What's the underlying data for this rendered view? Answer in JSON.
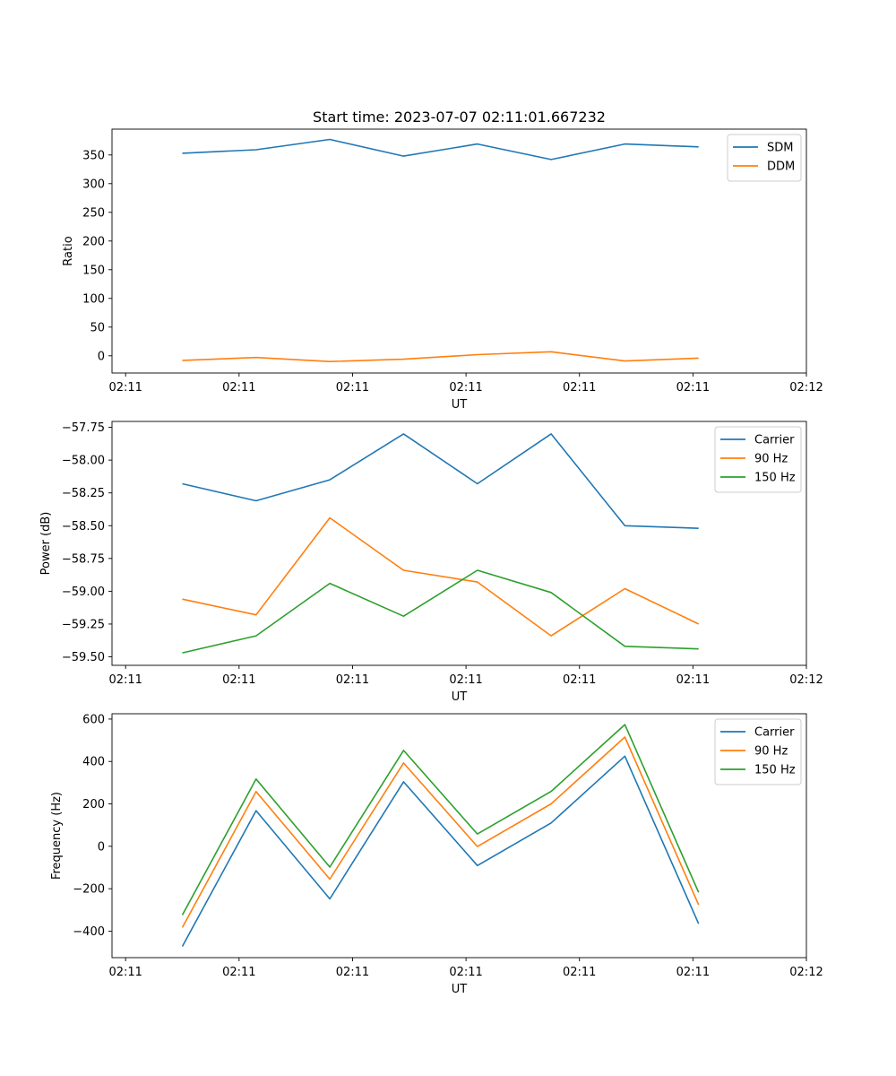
{
  "figure_title": "Start time: 2023-07-07 02:11:01.667232",
  "chart_data": [
    {
      "type": "line",
      "title": "Start time: 2023-07-07 02:11:01.667232",
      "xlabel": "UT",
      "ylabel": "Ratio",
      "x_tick_labels": [
        "02:11",
        "02:11",
        "02:11",
        "02:11",
        "02:11",
        "02:11",
        "02:12"
      ],
      "x_ticks": [
        0,
        1,
        2,
        3,
        4,
        5,
        6
      ],
      "xlim": [
        -0.12,
        6.0
      ],
      "x": [
        0.5,
        1.15,
        1.8,
        2.45,
        3.1,
        3.75,
        4.4,
        5.05
      ],
      "y_ticks": [
        0,
        50,
        100,
        150,
        200,
        250,
        300,
        350
      ],
      "ylim": [
        -30,
        395
      ],
      "legend": "top-right",
      "series": [
        {
          "name": "SDM",
          "color": "#1f77b4",
          "values": [
            353,
            359,
            377,
            348,
            369,
            342,
            369,
            364
          ]
        },
        {
          "name": "DDM",
          "color": "#ff7f0e",
          "values": [
            -8,
            -3,
            -10,
            -6,
            2,
            7,
            -9,
            -4
          ]
        }
      ]
    },
    {
      "type": "line",
      "title": "",
      "xlabel": "UT",
      "ylabel": "Power (dB)",
      "x_tick_labels": [
        "02:11",
        "02:11",
        "02:11",
        "02:11",
        "02:11",
        "02:11",
        "02:12"
      ],
      "x_ticks": [
        0,
        1,
        2,
        3,
        4,
        5,
        6
      ],
      "xlim": [
        -0.12,
        6.0
      ],
      "x": [
        0.5,
        1.15,
        1.8,
        2.45,
        3.1,
        3.75,
        4.4,
        5.05
      ],
      "y_ticks": [
        -59.5,
        -59.25,
        -59.0,
        -58.75,
        -58.5,
        -58.25,
        -58.0,
        -57.75
      ],
      "y_tick_labels": [
        "−59.50",
        "−59.25",
        "−59.00",
        "−58.75",
        "−58.50",
        "−58.25",
        "−58.00",
        "−57.75"
      ],
      "ylim": [
        -59.565,
        -57.705
      ],
      "legend": "top-right",
      "series": [
        {
          "name": "Carrier",
          "color": "#1f77b4",
          "values": [
            -58.18,
            -58.31,
            -58.15,
            -57.8,
            -58.18,
            -57.8,
            -58.5,
            -58.52
          ]
        },
        {
          "name": "90 Hz",
          "color": "#ff7f0e",
          "values": [
            -59.06,
            -59.18,
            -58.44,
            -58.84,
            -58.93,
            -59.34,
            -58.98,
            -59.25
          ]
        },
        {
          "name": "150 Hz",
          "color": "#2ca02c",
          "values": [
            -59.47,
            -59.34,
            -58.94,
            -59.19,
            -58.84,
            -59.01,
            -59.42,
            -59.44
          ]
        }
      ]
    },
    {
      "type": "line",
      "title": "",
      "xlabel": "UT",
      "ylabel": "Frequency (Hz)",
      "x_tick_labels": [
        "02:11",
        "02:11",
        "02:11",
        "02:11",
        "02:11",
        "02:11",
        "02:12"
      ],
      "x_ticks": [
        0,
        1,
        2,
        3,
        4,
        5,
        6
      ],
      "xlim": [
        -0.12,
        6.0
      ],
      "x": [
        0.5,
        1.15,
        1.8,
        2.45,
        3.1,
        3.75,
        4.4,
        5.05
      ],
      "y_ticks": [
        -400,
        -200,
        0,
        200,
        400,
        600
      ],
      "y_tick_labels": [
        "−400",
        "−200",
        "0",
        "200",
        "400",
        "600"
      ],
      "ylim": [
        -525,
        625
      ],
      "legend": "top-right",
      "series": [
        {
          "name": "Carrier",
          "color": "#1f77b4",
          "values": [
            -472,
            168,
            -248,
            304,
            -91,
            110,
            425,
            -365
          ]
        },
        {
          "name": "90 Hz",
          "color": "#ff7f0e",
          "values": [
            -383,
            258,
            -155,
            393,
            -1,
            200,
            515,
            -276
          ]
        },
        {
          "name": "150 Hz",
          "color": "#2ca02c",
          "values": [
            -324,
            317,
            -98,
            452,
            58,
            259,
            574,
            -217
          ]
        }
      ]
    }
  ]
}
